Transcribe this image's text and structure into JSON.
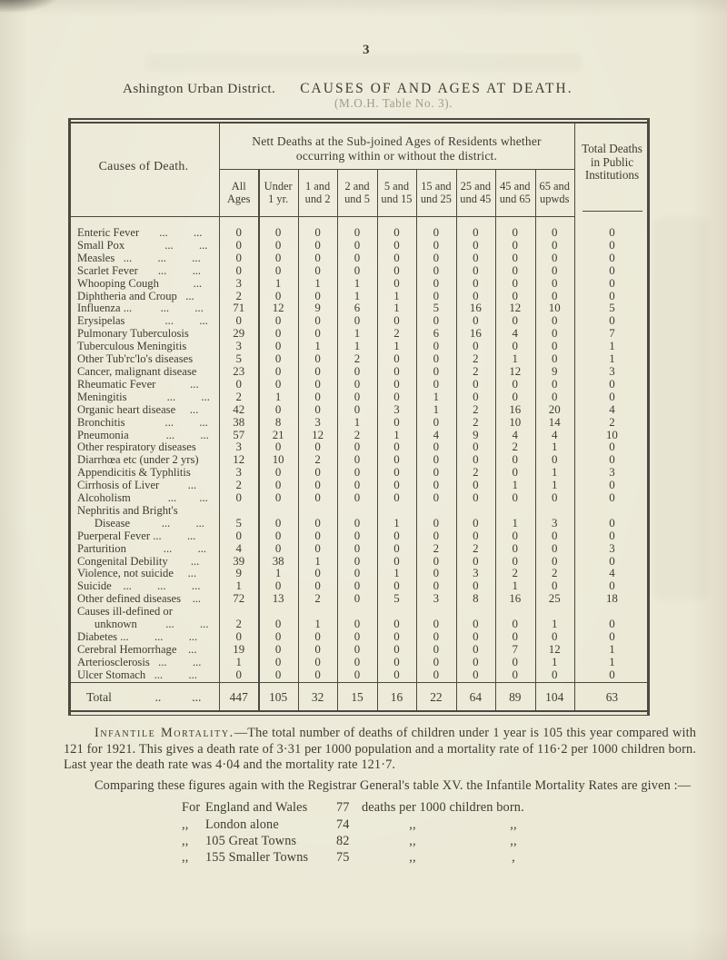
{
  "page": {
    "page_number": "3",
    "heading_left": "Ashington Urban District.",
    "heading_right": "CAUSES OF AND AGES AT DEATH.",
    "subheading": "(M.O.H. Table No. 3)."
  },
  "table": {
    "causes_label": "Causes of Death.",
    "nett_line1": "Nett Deaths at the Sub-joined Ages of Residents whether",
    "nett_line2": "occurring within or without the district.",
    "inst_lines": [
      "Total Deaths",
      "in Public",
      "Institutions"
    ],
    "age_columns": [
      [
        "All",
        "Ages"
      ],
      [
        "Under",
        "1 yr."
      ],
      [
        "1 and",
        "und 2"
      ],
      [
        "2 and",
        "und 5"
      ],
      [
        "5 and",
        "und 15"
      ],
      [
        "15 and",
        "und 25"
      ],
      [
        "25 and",
        "und 45"
      ],
      [
        "45 and",
        "und 65"
      ],
      [
        "65 and",
        "upwds"
      ]
    ],
    "rows": [
      {
        "lines": [
          "Enteric Fever       ...         ..."
        ],
        "values": [
          0,
          0,
          0,
          0,
          0,
          0,
          0,
          0,
          0,
          0
        ]
      },
      {
        "lines": [
          "Small Pox              ...         ..."
        ],
        "values": [
          0,
          0,
          0,
          0,
          0,
          0,
          0,
          0,
          0,
          0
        ]
      },
      {
        "lines": [
          "Measles   ...         ...         ..."
        ],
        "values": [
          0,
          0,
          0,
          0,
          0,
          0,
          0,
          0,
          0,
          0
        ]
      },
      {
        "lines": [
          "Scarlet Fever       ...         ..."
        ],
        "values": [
          0,
          0,
          0,
          0,
          0,
          0,
          0,
          0,
          0,
          0
        ]
      },
      {
        "lines": [
          "Whooping Cough            ..."
        ],
        "values": [
          3,
          1,
          1,
          1,
          0,
          0,
          0,
          0,
          0,
          0
        ]
      },
      {
        "lines": [
          "Diphtheria and Croup   ..."
        ],
        "values": [
          2,
          0,
          0,
          1,
          1,
          0,
          0,
          0,
          0,
          0
        ]
      },
      {
        "lines": [
          "Influenza ...          ...         ..."
        ],
        "values": [
          71,
          12,
          9,
          6,
          1,
          5,
          16,
          12,
          10,
          5
        ]
      },
      {
        "lines": [
          "Erysipelas              ...         ..."
        ],
        "values": [
          0,
          0,
          0,
          0,
          0,
          0,
          0,
          0,
          0,
          0
        ]
      },
      {
        "lines": [
          "Pulmonary Tuberculosis"
        ],
        "values": [
          29,
          0,
          0,
          1,
          2,
          6,
          16,
          4,
          0,
          7
        ]
      },
      {
        "lines": [
          "Tuberculous Meningitis"
        ],
        "values": [
          3,
          0,
          1,
          1,
          1,
          0,
          0,
          0,
          0,
          1
        ]
      },
      {
        "lines": [
          "Other Tub'rc'lo's diseases"
        ],
        "values": [
          5,
          0,
          0,
          2,
          0,
          0,
          2,
          1,
          0,
          1
        ]
      },
      {
        "lines": [
          "Cancer, malignant disease"
        ],
        "values": [
          23,
          0,
          0,
          0,
          0,
          0,
          2,
          12,
          9,
          3
        ]
      },
      {
        "lines": [
          "Rheumatic Fever            ..."
        ],
        "values": [
          0,
          0,
          0,
          0,
          0,
          0,
          0,
          0,
          0,
          0
        ]
      },
      {
        "lines": [
          "Meningitis              ...         ..."
        ],
        "values": [
          2,
          1,
          0,
          0,
          0,
          1,
          0,
          0,
          0,
          0
        ]
      },
      {
        "lines": [
          "Organic heart disease     ..."
        ],
        "values": [
          42,
          0,
          0,
          0,
          3,
          1,
          2,
          16,
          20,
          4
        ]
      },
      {
        "lines": [
          "Bronchitis              ...         ..."
        ],
        "values": [
          38,
          8,
          3,
          1,
          0,
          0,
          2,
          10,
          14,
          2
        ]
      },
      {
        "lines": [
          "Pneumonia             ...         ..."
        ],
        "values": [
          57,
          21,
          12,
          2,
          1,
          4,
          9,
          4,
          4,
          10
        ]
      },
      {
        "lines": [
          "Other respiratory diseases"
        ],
        "values": [
          3,
          0,
          0,
          0,
          0,
          0,
          0,
          2,
          1,
          0
        ]
      },
      {
        "lines": [
          "Diarrhœa etc (under 2 yrs)"
        ],
        "values": [
          12,
          10,
          2,
          0,
          0,
          0,
          0,
          0,
          0,
          0
        ]
      },
      {
        "lines": [
          "Appendicitis & Typhlitis"
        ],
        "values": [
          3,
          0,
          0,
          0,
          0,
          0,
          2,
          0,
          1,
          3
        ]
      },
      {
        "lines": [
          "Cirrhosis of Liver          ..."
        ],
        "values": [
          2,
          0,
          0,
          0,
          0,
          0,
          0,
          1,
          1,
          0
        ]
      },
      {
        "lines": [
          "Alcoholism             ...        ..."
        ],
        "values": [
          0,
          0,
          0,
          0,
          0,
          0,
          0,
          0,
          0,
          0
        ]
      },
      {
        "lines": [
          "Nephritis and Bright's",
          "      Disease           ...         ..."
        ],
        "values": [
          5,
          0,
          0,
          0,
          1,
          0,
          0,
          1,
          3,
          0
        ]
      },
      {
        "lines": [
          "Puerperal Fever ...         ..."
        ],
        "values": [
          0,
          0,
          0,
          0,
          0,
          0,
          0,
          0,
          0,
          0
        ]
      },
      {
        "lines": [
          "Parturition             ...         ..."
        ],
        "values": [
          4,
          0,
          0,
          0,
          0,
          2,
          2,
          0,
          0,
          3
        ]
      },
      {
        "lines": [
          "Congenital Debility        ..."
        ],
        "values": [
          39,
          38,
          1,
          0,
          0,
          0,
          0,
          0,
          0,
          0
        ]
      },
      {
        "lines": [
          "Violence, not suicide     ..."
        ],
        "values": [
          9,
          1,
          0,
          0,
          1,
          0,
          3,
          2,
          2,
          4
        ]
      },
      {
        "lines": [
          "Suicide    ...         ...         ..."
        ],
        "values": [
          1,
          0,
          0,
          0,
          0,
          0,
          0,
          1,
          0,
          0
        ]
      },
      {
        "lines": [
          "Other defined diseases    ..."
        ],
        "values": [
          72,
          13,
          2,
          0,
          5,
          3,
          8,
          16,
          25,
          18
        ]
      },
      {
        "lines": [
          "Causes ill-defined or",
          "      unknown          ...         ..."
        ],
        "values": [
          2,
          0,
          1,
          0,
          0,
          0,
          0,
          0,
          1,
          0
        ]
      },
      {
        "lines": [
          "Diabetes ...         ...         ..."
        ],
        "values": [
          0,
          0,
          0,
          0,
          0,
          0,
          0,
          0,
          0,
          0
        ]
      },
      {
        "lines": [
          "Cerebral Hemorrhage    ..."
        ],
        "values": [
          19,
          0,
          0,
          0,
          0,
          0,
          0,
          7,
          12,
          1
        ]
      },
      {
        "lines": [
          "Arteriosclerosis   ...         ..."
        ],
        "values": [
          1,
          0,
          0,
          0,
          0,
          0,
          0,
          0,
          1,
          1
        ]
      },
      {
        "lines": [
          "Ulcer Stomach   ...         ..."
        ],
        "values": [
          0,
          0,
          0,
          0,
          0,
          0,
          0,
          0,
          0,
          0
        ]
      }
    ],
    "total_row": {
      "label_text": "      Total              ..          ...",
      "values": [
        447,
        105,
        32,
        15,
        16,
        22,
        64,
        89,
        104,
        63
      ]
    }
  },
  "bottom": {
    "lead": "Infantile Mortality.",
    "para1_rest": "—The total number of deaths of children under 1 year is 105 this year compared with 121 for 1921.  This gives a death rate of 3·31 per 1000 population and a mortality rate of 116·2 per 1000 children born.  Last year the death rate was 4·04 and the mortality rate 121·7.",
    "para2": "Comparing these figures again with the Registrar General's table XV. the Infantile Mortality Rates are given :—",
    "rates": [
      {
        "prefix": "For",
        "place": "England and Wales",
        "value": "77",
        "after": "deaths per 1000 children born.",
        "d1": "",
        "d2": ""
      },
      {
        "prefix": ",,",
        "place": "London alone",
        "value": "74",
        "after": "",
        "d1": ",,",
        "d2": ",,"
      },
      {
        "prefix": ",,",
        "place": "105 Great Towns",
        "value": "82",
        "after": "",
        "d1": ",,",
        "d2": ",,"
      },
      {
        "prefix": ",,",
        "place": "155 Smaller Towns",
        "value": "75",
        "after": "",
        "d1": ",,",
        "d2": ","
      }
    ]
  }
}
